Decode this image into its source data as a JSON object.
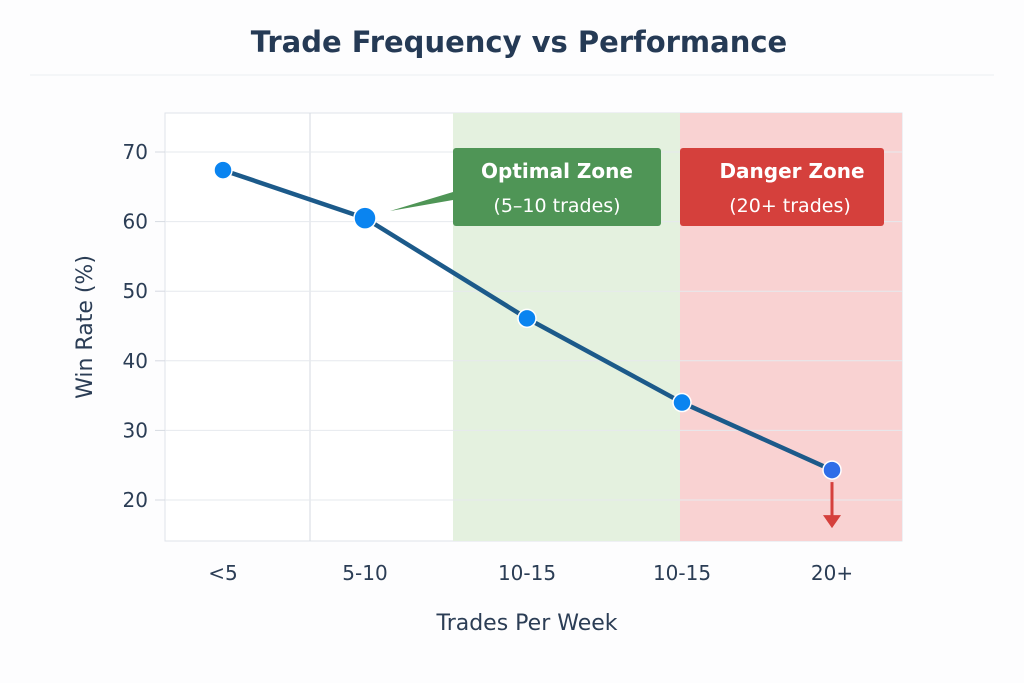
{
  "chart_data": {
    "type": "line",
    "title": "Trade Frequency vs Performance",
    "xlabel": "Trades Per Week",
    "ylabel": "Win Rate (%)",
    "categories": [
      "<5",
      "5-10",
      "10-15",
      "10-15",
      "20+"
    ],
    "values": [
      67.4,
      60.5,
      46.1,
      34.0,
      24.3
    ],
    "ylim": [
      15,
      76
    ],
    "yticks": [
      20,
      30,
      40,
      50,
      60,
      70
    ],
    "grid": true,
    "annotations": {
      "optimal": {
        "title": "Optimal Zone",
        "subtitle": "(5–10 trades)"
      },
      "danger": {
        "title": "Danger Zone",
        "subtitle": "(20+ trades)"
      }
    },
    "colors": {
      "line": "#1c5a8a",
      "point": "#0a84f0",
      "optimal_band": "#e4f1df",
      "danger_band": "#f9d2d2",
      "optimal_box": "#4f9556",
      "danger_box": "#d5403c",
      "arrow": "#d5403c"
    }
  }
}
